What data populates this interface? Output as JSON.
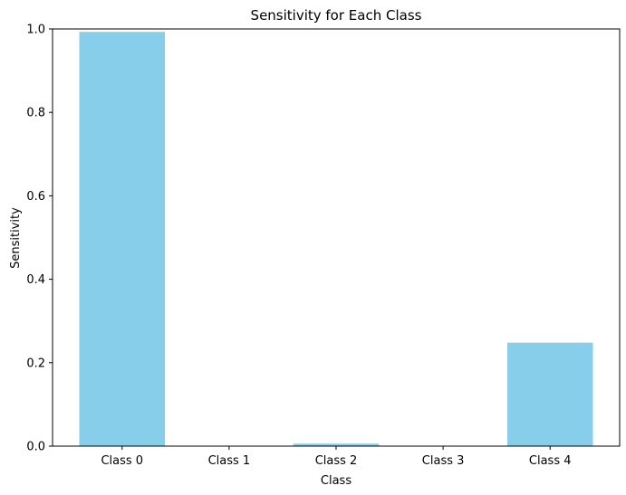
{
  "colors": {
    "bar": "#87ceeb",
    "axis": "#000000",
    "background": "#ffffff"
  },
  "chart_data": {
    "type": "bar",
    "title": "Sensitivity for Each Class",
    "xlabel": "Class",
    "ylabel": "Sensitivity",
    "categories": [
      "Class 0",
      "Class 1",
      "Class 2",
      "Class 3",
      "Class 4"
    ],
    "values": [
      0.993,
      0.0,
      0.006,
      0.0,
      0.248
    ],
    "ylim": [
      0,
      1.0
    ],
    "yticks": [
      0.0,
      0.2,
      0.4,
      0.6,
      0.8,
      1.0
    ],
    "ytick_labels": [
      "0.0",
      "0.2",
      "0.4",
      "0.6",
      "0.8",
      "1.0"
    ],
    "grid": false,
    "legend": "none"
  }
}
